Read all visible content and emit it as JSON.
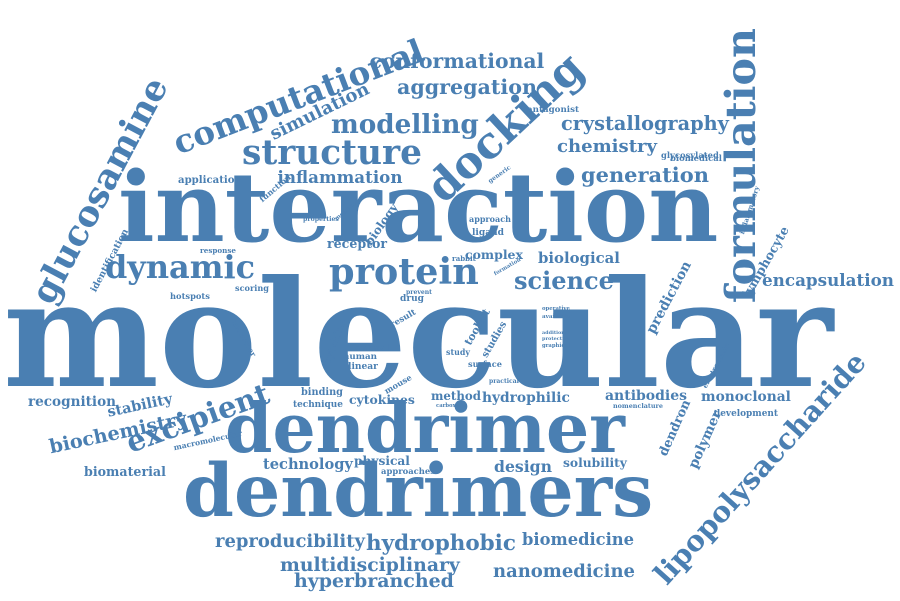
{
  "color": "#4a7fb2",
  "words": [
    {
      "text": "molecular",
      "rot": 0
    },
    {
      "text": "interaction",
      "rot": 0
    },
    {
      "text": "dendrimers",
      "rot": 0
    },
    {
      "text": "dendrimer",
      "rot": 0
    },
    {
      "text": "docking",
      "rot": -43
    },
    {
      "text": "formulation",
      "rot": -90
    },
    {
      "text": "computational",
      "rot": -21
    },
    {
      "text": "glucosamine",
      "rot": -62
    },
    {
      "text": "lipopolysaccharide",
      "rot": -48
    },
    {
      "text": "protein",
      "rot": 0
    },
    {
      "text": "dynamic",
      "rot": 0
    },
    {
      "text": "structure",
      "rot": 0
    },
    {
      "text": "science",
      "rot": 0
    },
    {
      "text": "excipient",
      "rot": -20
    },
    {
      "text": "conformational",
      "rot": 0
    },
    {
      "text": "aggregation",
      "rot": 0
    },
    {
      "text": "modelling",
      "rot": 0
    },
    {
      "text": "simulation",
      "rot": -26
    },
    {
      "text": "crystallography",
      "rot": 0
    },
    {
      "text": "chemistry",
      "rot": 0
    },
    {
      "text": "generation",
      "rot": 0
    },
    {
      "text": "inflammation",
      "rot": 0
    },
    {
      "text": "encapsulation",
      "rot": 0
    },
    {
      "text": "hyperbranched",
      "rot": 0
    },
    {
      "text": "multidisciplinary",
      "rot": 0
    },
    {
      "text": "nanomedicine",
      "rot": 0
    },
    {
      "text": "reproducibility",
      "rot": 0
    },
    {
      "text": "hydrophobic",
      "rot": 0
    },
    {
      "text": "biomedicine",
      "rot": 0
    },
    {
      "text": "design",
      "rot": 0
    },
    {
      "text": "stability",
      "rot": -12
    },
    {
      "text": "biochemistry",
      "rot": -12
    },
    {
      "text": "recognition",
      "rot": 0
    },
    {
      "text": "biomaterial",
      "rot": 0
    },
    {
      "text": "technology",
      "rot": 0
    },
    {
      "text": "physical",
      "rot": 0
    },
    {
      "text": "solubility",
      "rot": 0
    },
    {
      "text": "hydrophilic",
      "rot": 0
    },
    {
      "text": "antibodies",
      "rot": 0
    },
    {
      "text": "monoclonal",
      "rot": 0
    },
    {
      "text": "cytokines",
      "rot": 0
    },
    {
      "text": "method",
      "rot": 0
    },
    {
      "text": "dendron",
      "rot": -66
    },
    {
      "text": "polymer",
      "rot": -66
    },
    {
      "text": "lymphocyte",
      "rot": -60
    },
    {
      "text": "prediction",
      "rot": -62
    },
    {
      "text": "complex",
      "rot": 0
    },
    {
      "text": "biological",
      "rot": 0
    },
    {
      "text": "receptor",
      "rot": 0
    },
    {
      "text": "scoring",
      "rot": 0
    },
    {
      "text": "hotspots",
      "rot": 0
    },
    {
      "text": "response",
      "rot": 0
    },
    {
      "text": "identification",
      "rot": -62
    },
    {
      "text": "application",
      "rot": 0
    },
    {
      "text": "function",
      "rot": -40
    },
    {
      "text": "biology",
      "rot": -55
    },
    {
      "text": "antagonist",
      "rot": 0
    },
    {
      "text": "biomedical",
      "rot": 0
    },
    {
      "text": "glycosylated",
      "rot": 0
    },
    {
      "text": "inflammatory",
      "rot": -72
    },
    {
      "text": "ligand",
      "rot": 0
    },
    {
      "text": "approach",
      "rot": 0
    },
    {
      "text": "generic",
      "rot": -35
    },
    {
      "text": "binding",
      "rot": 0
    },
    {
      "text": "technique",
      "rot": 0
    },
    {
      "text": "cytokine",
      "rot": -70
    },
    {
      "text": "animal",
      "rot": 0
    },
    {
      "text": "human",
      "rot": 0
    },
    {
      "text": "linear",
      "rot": 0
    },
    {
      "text": "mouse",
      "rot": -30
    },
    {
      "text": "studies",
      "rot": -60
    },
    {
      "text": "toolkit",
      "rot": -60
    },
    {
      "text": "study",
      "rot": 0
    },
    {
      "text": "surface",
      "rot": 0
    },
    {
      "text": "drug",
      "rot": 0
    },
    {
      "text": "result",
      "rot": -30
    },
    {
      "text": "prevent",
      "rot": 0
    },
    {
      "text": "practical",
      "rot": 0
    },
    {
      "text": "approaches",
      "rot": 0
    },
    {
      "text": "development",
      "rot": 0
    },
    {
      "text": "electrostatic",
      "rot": -62
    },
    {
      "text": "macromolecular",
      "rot": -12
    },
    {
      "text": "properties",
      "rot": 0
    },
    {
      "text": "mediated",
      "rot": -40
    },
    {
      "text": "rabbit",
      "rot": 0
    },
    {
      "text": "nomenclature",
      "rot": 0
    },
    {
      "text": "carboxylic",
      "rot": 0
    },
    {
      "text": "monomer",
      "rot": 60
    },
    {
      "text": "formation",
      "rot": -30
    },
    {
      "text": "operative",
      "rot": 0
    },
    {
      "text": "available",
      "rot": 0
    },
    {
      "text": "additional",
      "rot": 0
    },
    {
      "text": "protective",
      "rot": 0
    },
    {
      "text": "graphical",
      "rot": 0
    }
  ]
}
